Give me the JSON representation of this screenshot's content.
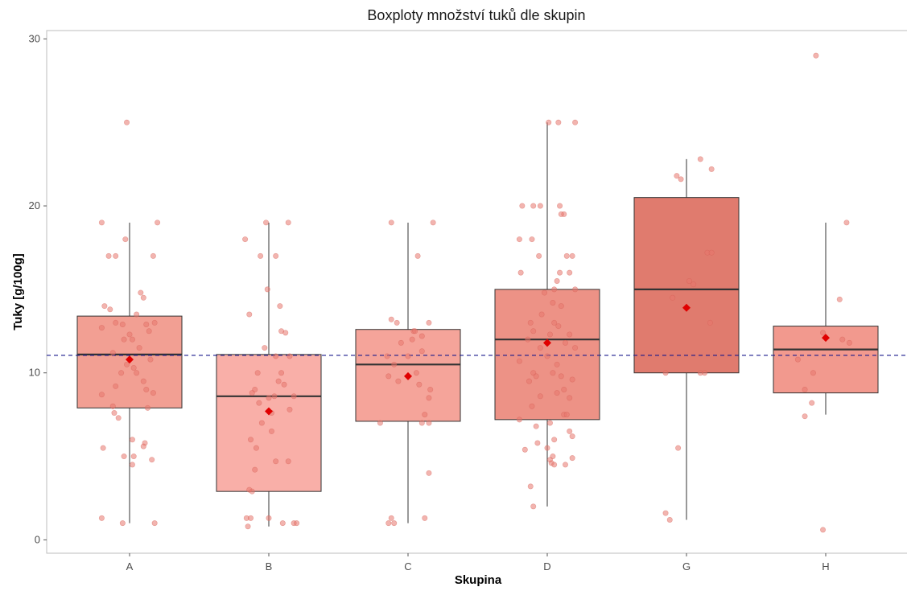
{
  "chart_data": {
    "type": "boxplot",
    "title": "Boxploty množství tuků dle skupin",
    "xlabel": "Skupina",
    "ylabel": "Tuky [g/100g]",
    "ylim": [
      -0.8,
      30.5
    ],
    "yticks": [
      0,
      10,
      20,
      30
    ],
    "grid": false,
    "reference_line": {
      "y": 11.05,
      "color": "#1a1a8c",
      "style": "dashed"
    },
    "colors": {
      "box_stroke": "#333333",
      "point": "#e8766d",
      "mean": "#e00000"
    },
    "categories": [
      "A",
      "B",
      "C",
      "D",
      "G",
      "H"
    ],
    "boxes": [
      {
        "group": "A",
        "min": 1.0,
        "q1": 7.9,
        "median": 11.1,
        "q3": 13.4,
        "max": 19.0,
        "mean": 10.8,
        "fill": "#f29f93",
        "points": [
          [
            -0.2,
            19
          ],
          [
            0.2,
            19
          ],
          [
            -0.02,
            25
          ],
          [
            -0.03,
            18
          ],
          [
            -0.15,
            17
          ],
          [
            -0.1,
            17
          ],
          [
            0.17,
            17
          ],
          [
            -0.18,
            14
          ],
          [
            -0.14,
            13.8
          ],
          [
            0.08,
            14.8
          ],
          [
            0.1,
            14.5
          ],
          [
            0.05,
            13.5
          ],
          [
            -0.2,
            12.7
          ],
          [
            -0.1,
            13
          ],
          [
            -0.05,
            12.9
          ],
          [
            0.12,
            12.9
          ],
          [
            0.18,
            13
          ],
          [
            0.14,
            12.5
          ],
          [
            0.0,
            12.3
          ],
          [
            -0.04,
            12
          ],
          [
            0.02,
            12
          ],
          [
            0.07,
            11.5
          ],
          [
            -0.12,
            11.2
          ],
          [
            0.15,
            10.8
          ],
          [
            -0.02,
            10.5
          ],
          [
            0.03,
            10.3
          ],
          [
            -0.06,
            10
          ],
          [
            0.05,
            10
          ],
          [
            0.1,
            9.5
          ],
          [
            -0.1,
            9.2
          ],
          [
            0.12,
            9.0
          ],
          [
            0.17,
            8.8
          ],
          [
            -0.2,
            8.7
          ],
          [
            -0.12,
            8.0
          ],
          [
            0.13,
            7.9
          ],
          [
            -0.11,
            7.6
          ],
          [
            -0.08,
            7.3
          ],
          [
            0.02,
            6.0
          ],
          [
            0.11,
            5.8
          ],
          [
            0.1,
            5.6
          ],
          [
            -0.19,
            5.5
          ],
          [
            0.03,
            5.0
          ],
          [
            -0.04,
            5.0
          ],
          [
            0.02,
            4.5
          ],
          [
            0.16,
            4.8
          ],
          [
            -0.2,
            1.3
          ],
          [
            -0.05,
            1.0
          ],
          [
            0.18,
            1.0
          ]
        ]
      },
      {
        "group": "B",
        "min": 0.8,
        "q1": 2.9,
        "median": 8.6,
        "q3": 11.1,
        "max": 19.0,
        "mean": 7.7,
        "fill": "#f9afa8",
        "points": [
          [
            -0.17,
            18
          ],
          [
            -0.02,
            19
          ],
          [
            0.14,
            19
          ],
          [
            -0.06,
            17
          ],
          [
            0.05,
            17
          ],
          [
            -0.01,
            15
          ],
          [
            0.08,
            14
          ],
          [
            -0.14,
            13.5
          ],
          [
            0.09,
            12.5
          ],
          [
            0.12,
            12.4
          ],
          [
            -0.03,
            11.5
          ],
          [
            0.15,
            11.0
          ],
          [
            0.05,
            11.0
          ],
          [
            -0.08,
            10
          ],
          [
            0.09,
            10
          ],
          [
            0.11,
            9.3
          ],
          [
            0.07,
            9.5
          ],
          [
            -0.1,
            9.0
          ],
          [
            -0.12,
            8.8
          ],
          [
            0.0,
            8.5
          ],
          [
            0.04,
            8.6
          ],
          [
            0.18,
            8.6
          ],
          [
            -0.07,
            8.2
          ],
          [
            0.15,
            7.8
          ],
          [
            0.02,
            7.6
          ],
          [
            -0.05,
            7.0
          ],
          [
            0.02,
            6.5
          ],
          [
            -0.13,
            6.0
          ],
          [
            -0.09,
            5.5
          ],
          [
            0.14,
            4.7
          ],
          [
            0.05,
            4.7
          ],
          [
            -0.1,
            4.2
          ],
          [
            -0.14,
            3.0
          ],
          [
            -0.12,
            2.9
          ],
          [
            -0.16,
            1.3
          ],
          [
            -0.13,
            1.3
          ],
          [
            0.0,
            1.3
          ],
          [
            -0.15,
            0.8
          ],
          [
            0.18,
            1.0
          ],
          [
            0.2,
            1.0
          ],
          [
            0.1,
            1.0
          ]
        ]
      },
      {
        "group": "C",
        "min": 1.0,
        "q1": 7.1,
        "median": 10.5,
        "q3": 12.6,
        "max": 19.0,
        "mean": 9.8,
        "fill": "#f5a49a",
        "points": [
          [
            -0.12,
            19
          ],
          [
            0.18,
            19
          ],
          [
            0.07,
            17
          ],
          [
            -0.12,
            13.2
          ],
          [
            -0.08,
            13.0
          ],
          [
            0.15,
            13.0
          ],
          [
            0.04,
            12.5
          ],
          [
            0.05,
            12.5
          ],
          [
            0.1,
            12.2
          ],
          [
            0.03,
            12.0
          ],
          [
            -0.05,
            11.8
          ],
          [
            0.1,
            11.3
          ],
          [
            -0.15,
            11.0
          ],
          [
            0.0,
            11.0
          ],
          [
            -0.1,
            10.5
          ],
          [
            0.06,
            10.0
          ],
          [
            -0.14,
            9.8
          ],
          [
            -0.07,
            9.5
          ],
          [
            0.08,
            9.3
          ],
          [
            0.16,
            9.0
          ],
          [
            0.15,
            8.5
          ],
          [
            0.12,
            7.5
          ],
          [
            0.1,
            7.0
          ],
          [
            0.15,
            7.0
          ],
          [
            -0.2,
            7.0
          ],
          [
            0.15,
            4.0
          ],
          [
            -0.12,
            1.3
          ],
          [
            0.12,
            1.3
          ],
          [
            -0.14,
            1.0
          ],
          [
            -0.1,
            1.0
          ]
        ]
      },
      {
        "group": "D",
        "min": 2.0,
        "q1": 7.2,
        "median": 12.0,
        "q3": 15.0,
        "max": 25.0,
        "mean": 11.8,
        "fill": "#ed9286",
        "points": [
          [
            0.01,
            25
          ],
          [
            0.08,
            25
          ],
          [
            0.2,
            25
          ],
          [
            -0.18,
            20
          ],
          [
            -0.1,
            20
          ],
          [
            -0.05,
            20
          ],
          [
            0.09,
            20
          ],
          [
            0.12,
            19.5
          ],
          [
            0.1,
            19.5
          ],
          [
            -0.2,
            18
          ],
          [
            -0.11,
            18
          ],
          [
            0.14,
            17
          ],
          [
            0.18,
            17
          ],
          [
            -0.06,
            17
          ],
          [
            0.09,
            16
          ],
          [
            0.16,
            16
          ],
          [
            -0.19,
            16
          ],
          [
            0.07,
            15.5
          ],
          [
            0.05,
            15
          ],
          [
            0.2,
            15
          ],
          [
            -0.02,
            14.8
          ],
          [
            0.04,
            14.2
          ],
          [
            0.1,
            14.0
          ],
          [
            -0.04,
            13.5
          ],
          [
            -0.12,
            13.0
          ],
          [
            0.05,
            13.0
          ],
          [
            0.08,
            12.8
          ],
          [
            -0.1,
            12.5
          ],
          [
            0.16,
            12.3
          ],
          [
            0.02,
            12.3
          ],
          [
            -0.14,
            12.0
          ],
          [
            0.13,
            11.8
          ],
          [
            -0.05,
            11.5
          ],
          [
            0.2,
            11.5
          ],
          [
            0.0,
            11.0
          ],
          [
            -0.2,
            10.7
          ],
          [
            0.07,
            10.5
          ],
          [
            -0.1,
            10.0
          ],
          [
            0.04,
            10.0
          ],
          [
            -0.08,
            9.8
          ],
          [
            0.1,
            9.8
          ],
          [
            0.18,
            9.6
          ],
          [
            -0.13,
            9.5
          ],
          [
            0.12,
            9.0
          ],
          [
            -0.05,
            8.6
          ],
          [
            0.07,
            8.8
          ],
          [
            0.16,
            8.5
          ],
          [
            -0.11,
            8.0
          ],
          [
            0.12,
            7.5
          ],
          [
            0.14,
            7.5
          ],
          [
            -0.2,
            7.2
          ],
          [
            0.02,
            7.0
          ],
          [
            -0.08,
            6.8
          ],
          [
            0.16,
            6.5
          ],
          [
            0.18,
            6.2
          ],
          [
            0.05,
            6.0
          ],
          [
            -0.07,
            5.8
          ],
          [
            0.0,
            5.5
          ],
          [
            -0.16,
            5.4
          ],
          [
            0.04,
            5.0
          ],
          [
            0.03,
            4.6
          ],
          [
            0.05,
            4.5
          ],
          [
            0.13,
            4.5
          ],
          [
            0.18,
            4.9
          ],
          [
            0.02,
            4.8
          ],
          [
            -0.12,
            3.2
          ],
          [
            -0.1,
            2.0
          ]
        ]
      },
      {
        "group": "G",
        "min": 1.2,
        "q1": 10.0,
        "median": 15.0,
        "q3": 20.5,
        "max": 22.8,
        "mean": 13.9,
        "fill": "#e07b6e",
        "points": [
          [
            0.1,
            22.8
          ],
          [
            0.18,
            22.2
          ],
          [
            -0.07,
            21.8
          ],
          [
            -0.04,
            21.6
          ],
          [
            0.15,
            17.2
          ],
          [
            0.18,
            17.2
          ],
          [
            0.02,
            15.5
          ],
          [
            0.05,
            15.3
          ],
          [
            -0.1,
            14.5
          ],
          [
            0.17,
            13.0
          ],
          [
            0.1,
            10.0
          ],
          [
            -0.15,
            10.0
          ],
          [
            0.13,
            10.0
          ],
          [
            -0.06,
            5.5
          ],
          [
            -0.15,
            1.6
          ],
          [
            -0.12,
            1.2
          ]
        ]
      },
      {
        "group": "H",
        "min": 7.5,
        "q1": 8.8,
        "median": 11.4,
        "q3": 12.8,
        "max": 19.0,
        "mean": 12.1,
        "fill": "#f2998e",
        "points": [
          [
            -0.07,
            29
          ],
          [
            0.15,
            19
          ],
          [
            0.1,
            14.4
          ],
          [
            -0.02,
            12.4
          ],
          [
            0.12,
            12.0
          ],
          [
            0.17,
            11.8
          ],
          [
            -0.2,
            10.8
          ],
          [
            -0.09,
            10.0
          ],
          [
            -0.15,
            9.0
          ],
          [
            -0.1,
            8.2
          ],
          [
            -0.15,
            7.4
          ],
          [
            -0.02,
            0.6
          ]
        ]
      }
    ]
  }
}
